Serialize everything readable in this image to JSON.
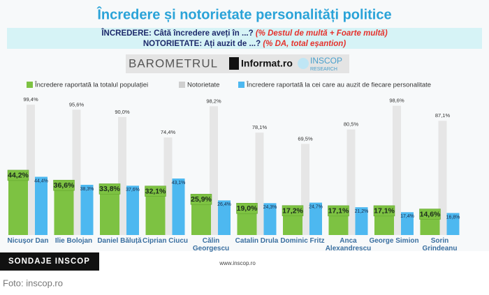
{
  "chart_data": {
    "type": "bar",
    "title": "Încredere și notorietate personalități politice",
    "questions": [
      {
        "label": "ÎNCREDERE:",
        "text": "Câtă încredere aveți în ...?",
        "note": "(% Destul de multă + Foarte multă)"
      },
      {
        "label": "NOTORIETATE:",
        "text": "Ați auzit de ...?",
        "note": "(% DA, total eșantion)"
      }
    ],
    "logo": {
      "barometer": "BAROMETRUL",
      "partner": "Informat.ro",
      "brand": "INSCOP",
      "brand_sub": "RESEARCH"
    },
    "categories": [
      "Nicușor Dan",
      "Ilie Bolojan",
      "Daniel Băluță",
      "Ciprian Ciucu",
      "Călin Georgescu",
      "Catalin Drula",
      "Dominic Fritz",
      "Anca Alexandrescu",
      "George Simion",
      "Sorin Grindeanu"
    ],
    "series": [
      {
        "name": "Încredere raportată la totalul populației",
        "color": "#7dc242",
        "values": [
          44.2,
          36.6,
          33.8,
          32.1,
          25.9,
          19.0,
          17.2,
          17.1,
          17.1,
          14.6
        ],
        "value_labels": [
          "44,2%",
          "36,6%",
          "33,8%",
          "32,1%",
          "25,9%",
          "19,0%",
          "17,2%",
          "17,1%",
          "17,1%",
          "14,6%"
        ]
      },
      {
        "name": "Notorietate",
        "color": "#e6e6e6",
        "values": [
          99.4,
          95.6,
          90.0,
          74.4,
          98.2,
          78.1,
          69.5,
          80.5,
          98.6,
          87.1
        ],
        "value_labels": [
          "99,4%",
          "95,6%",
          "90,0%",
          "74,4%",
          "98,2%",
          "78,1%",
          "69,5%",
          "80,5%",
          "98,6%",
          "87,1%"
        ]
      },
      {
        "name": "Încredere raportată la cei care au auzit de fiecare personalitate",
        "color": "#4db8f0",
        "values": [
          44.4,
          38.3,
          37.6,
          43.1,
          26.4,
          24.3,
          24.7,
          21.2,
          17.4,
          16.8
        ],
        "value_labels": [
          "44,4%",
          "38,3%",
          "37,6%",
          "43,1%",
          "26,4%",
          "24,3%",
          "24,7%",
          "21,2%",
          "17,4%",
          "16,8%"
        ]
      }
    ],
    "source": "www.inscop.ro",
    "badge": "SONDAJE INSCOP",
    "caption": "Foto: inscop.ro"
  }
}
